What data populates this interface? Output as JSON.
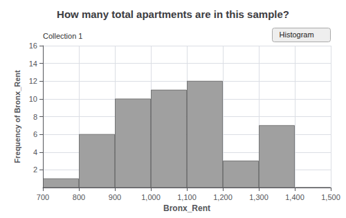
{
  "chart_data": {
    "type": "histogram",
    "title": "How many total apartments are in this sample?",
    "annotations": [
      "Collection 1",
      "Histogram"
    ],
    "xlabel": "Bronx_Rent",
    "ylabel": "Frequency of Bronx_Rent",
    "bins": [
      700,
      800,
      900,
      1000,
      1100,
      1200,
      1300,
      1400,
      1500
    ],
    "values": [
      1,
      6,
      10,
      11,
      12,
      3,
      7,
      0
    ],
    "color": "#a0a0a0",
    "xlim": [
      700,
      1500
    ],
    "xticks": [
      700,
      800,
      900,
      1000,
      1100,
      1200,
      1300,
      1400,
      1500
    ],
    "ylim": [
      0,
      16
    ],
    "yticks": [
      2,
      4,
      6,
      8,
      10,
      12,
      14,
      16
    ],
    "grid": true
  }
}
